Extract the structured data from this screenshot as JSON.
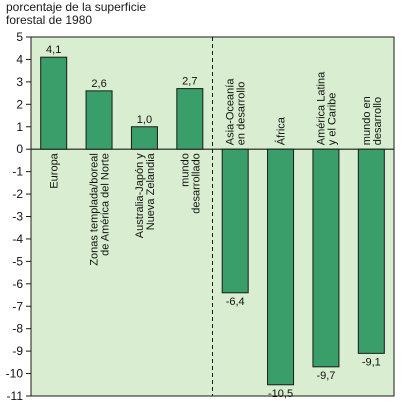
{
  "chart_data": {
    "type": "bar",
    "ylabel_lines": [
      "porcentaje de la superficie",
      "forestal de 1980"
    ],
    "xlabel": "",
    "ylim": [
      -11,
      5
    ],
    "yticks": [
      5,
      4,
      3,
      2,
      1,
      0,
      -1,
      -2,
      -3,
      -4,
      -5,
      -6,
      -7,
      -8,
      -9,
      -10,
      -11
    ],
    "grid": false,
    "legend": "none",
    "colors": {
      "background": "#d9eed0",
      "bar": "#3a9e6a",
      "bar_border": "#1a1a1a",
      "divider": "#1a1a1a"
    },
    "bars": [
      {
        "category_lines": [
          "Europa"
        ],
        "value": 4.1,
        "value_label": "4,1"
      },
      {
        "category_lines": [
          "Zonas templada/boreal",
          "de América del Norte"
        ],
        "value": 2.6,
        "value_label": "2,6"
      },
      {
        "category_lines": [
          "Australia-Japón y",
          "Nueva Zelandia"
        ],
        "value": 1.0,
        "value_label": "1,0"
      },
      {
        "category_lines": [
          "mundo",
          "desarrollado"
        ],
        "value": 2.7,
        "value_label": "2,7"
      },
      {
        "category_lines": [
          "Asia-Oceanía",
          "en desarrollo"
        ],
        "value": -6.4,
        "value_label": "-6,4"
      },
      {
        "category_lines": [
          "África"
        ],
        "value": -10.5,
        "value_label": "-10,5"
      },
      {
        "category_lines": [
          "América Latina",
          "y el Caribe"
        ],
        "value": -9.7,
        "value_label": "-9,7"
      },
      {
        "category_lines": [
          "mundo en",
          "desarrollo"
        ],
        "value": -9.1,
        "value_label": "-9,1"
      }
    ]
  }
}
